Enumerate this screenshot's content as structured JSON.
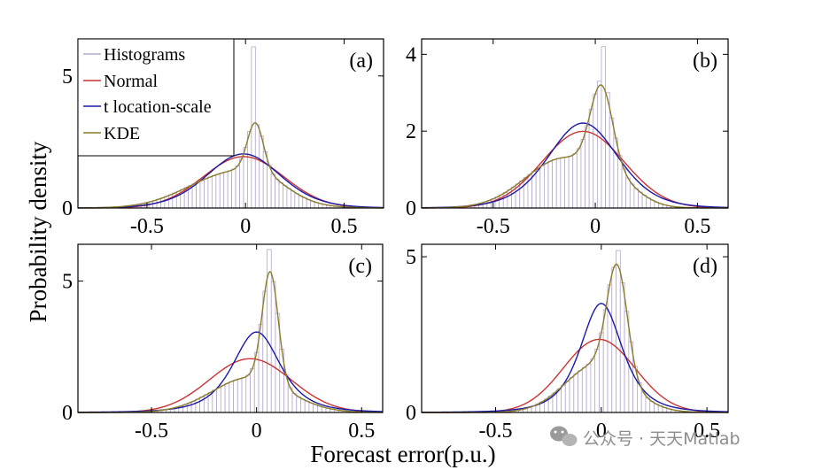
{
  "figure": {
    "ylabel": "Probability density",
    "xlabel": "Forecast error(p.u.)",
    "watermark": "公众号 · 天天Matlab"
  },
  "legend": {
    "entries": [
      {
        "label": "Histograms",
        "color": "#b6a7cf"
      },
      {
        "label": "Normal",
        "color": "#cc3333"
      },
      {
        "label": "t location-scale",
        "color": "#1a1aa8"
      },
      {
        "label": "KDE",
        "color": "#8b7d2c"
      }
    ]
  },
  "chart_data": [
    {
      "type": "bar",
      "panel": "(a)",
      "xlim": [
        -0.85,
        0.7
      ],
      "ylim": [
        0,
        6.4
      ],
      "xticks": [
        -0.5,
        0,
        0.5
      ],
      "xtick_labels": [
        "-0.5",
        "0",
        "0.5"
      ],
      "yticks": [
        0,
        5
      ],
      "ytick_labels": [
        "0",
        "5"
      ],
      "histogram": {
        "bin_width": 0.02,
        "peak_bin_center": 0.05,
        "peak_value": 6.1,
        "peak_neighbors": [
          2.9,
          2.3
        ]
      },
      "normal": {
        "mu": -0.01,
        "sigma": 0.205
      },
      "t_location_scale": {
        "mu": -0.01,
        "sigma": 0.19,
        "nu": 10
      },
      "kde": [
        {
          "w": 0.7,
          "mu": -0.08,
          "s": 0.22
        },
        {
          "w": 0.18,
          "mu": 0.05,
          "s": 0.04
        },
        {
          "w": 0.12,
          "mu": 0.1,
          "s": 0.12
        }
      ]
    },
    {
      "type": "bar",
      "panel": "(b)",
      "xlim": [
        -0.85,
        0.65
      ],
      "ylim": [
        0,
        4.4
      ],
      "xticks": [
        -0.5,
        0,
        0.5
      ],
      "xtick_labels": [
        "-0.5",
        "0",
        "0.5"
      ],
      "yticks": [
        0,
        2,
        4
      ],
      "ytick_labels": [
        "0",
        "2",
        "4"
      ],
      "histogram": {
        "bin_width": 0.02,
        "peak_bin_center": 0.05,
        "peak_value": 4.2,
        "peak_neighbors": [
          3.3,
          3.0
        ]
      },
      "normal": {
        "mu": -0.06,
        "sigma": 0.2
      },
      "t_location_scale": {
        "mu": -0.06,
        "sigma": 0.175,
        "nu": 8
      },
      "kde": [
        {
          "w": 0.62,
          "mu": -0.15,
          "s": 0.19
        },
        {
          "w": 0.3,
          "mu": 0.03,
          "s": 0.055
        },
        {
          "w": 0.08,
          "mu": 0.13,
          "s": 0.1
        }
      ]
    },
    {
      "type": "bar",
      "panel": "(c)",
      "xlim": [
        -0.85,
        0.6
      ],
      "ylim": [
        0,
        6.4
      ],
      "xticks": [
        -0.5,
        0,
        0.5
      ],
      "xtick_labels": [
        "-0.5",
        "0",
        "0.5"
      ],
      "yticks": [
        0,
        5
      ],
      "ytick_labels": [
        "0",
        "5"
      ],
      "histogram": {
        "bin_width": 0.02,
        "peak_bin_center": 0.07,
        "peak_value": 6.2,
        "peak_neighbors": [
          4.1,
          3.5
        ]
      },
      "normal": {
        "mu": -0.03,
        "sigma": 0.195
      },
      "t_location_scale": {
        "mu": 0.0,
        "sigma": 0.12,
        "nu": 3
      },
      "kde": [
        {
          "w": 0.6,
          "mu": -0.03,
          "s": 0.18
        },
        {
          "w": 0.4,
          "mu": 0.065,
          "s": 0.038
        }
      ]
    },
    {
      "type": "bar",
      "panel": "(d)",
      "xlim": [
        -0.85,
        0.6
      ],
      "ylim": [
        0,
        5.4
      ],
      "xticks": [
        -0.5,
        0,
        0.5
      ],
      "xtick_labels": [
        "-0.5",
        "0",
        "0.5"
      ],
      "yticks": [
        0,
        5
      ],
      "ytick_labels": [
        "0",
        "5"
      ],
      "histogram": {
        "bin_width": 0.02,
        "peak_bin_center": 0.09,
        "peak_value": 5.2,
        "peak_neighbors": [
          3.9,
          3.5
        ]
      },
      "normal": {
        "mu": -0.01,
        "sigma": 0.17
      },
      "t_location_scale": {
        "mu": 0.0,
        "sigma": 0.105,
        "nu": 3
      },
      "kde": [
        {
          "w": 0.58,
          "mu": -0.02,
          "s": 0.15
        },
        {
          "w": 0.42,
          "mu": 0.075,
          "s": 0.048
        }
      ]
    }
  ]
}
